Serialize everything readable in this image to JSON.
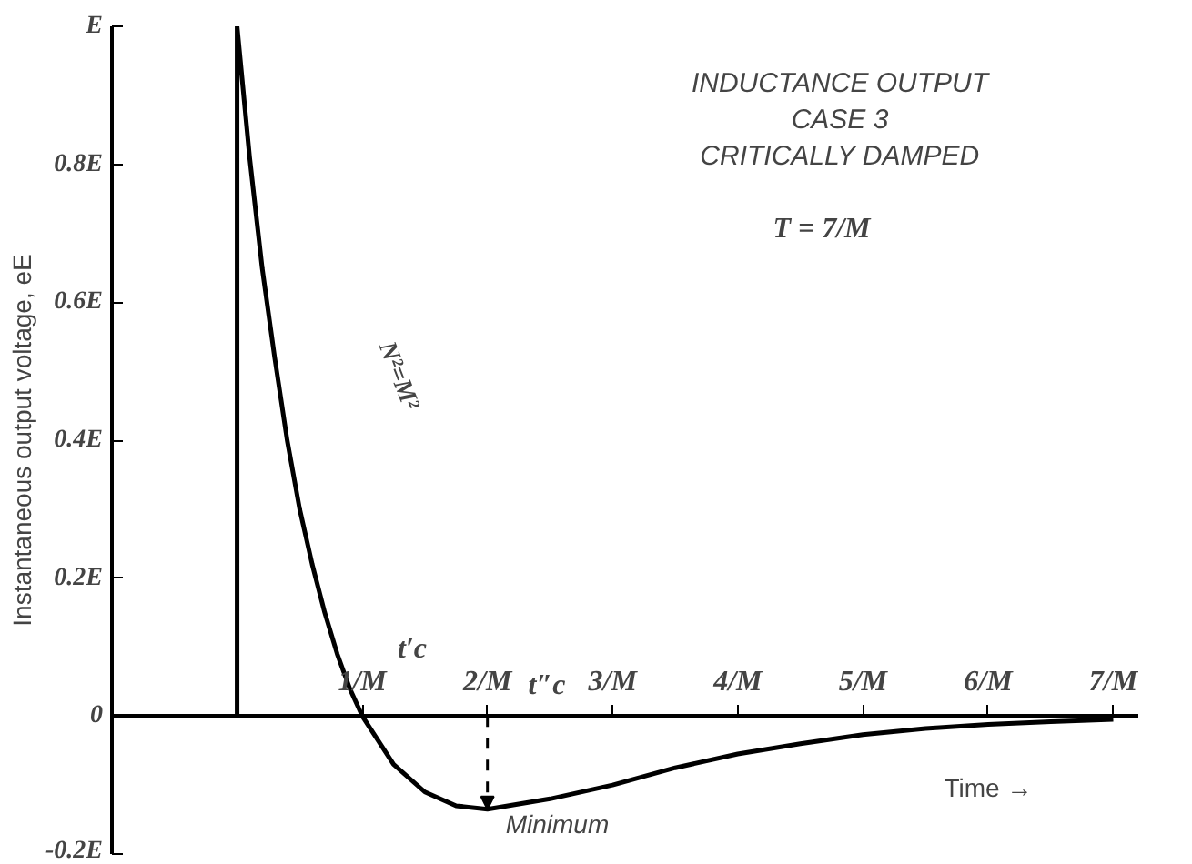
{
  "chart_data": {
    "type": "line",
    "title": "INDUCTANCE OUTPUT",
    "subtitle": "CASE 3\nCRITICALLY DAMPED",
    "xlabel": "Time →",
    "ylabel": "Instantaneous output voltage, eE",
    "x": [
      0,
      0,
      0.1,
      0.2,
      0.3,
      0.4,
      0.5,
      0.6,
      0.7,
      0.8,
      0.9,
      1,
      1.25,
      1.5,
      1.75,
      2,
      2.5,
      3,
      3.5,
      4,
      4.5,
      5,
      5.5,
      6,
      6.5,
      7
    ],
    "series": [
      {
        "color": "#000000",
        "values": [
          0,
          1,
          0.81,
          0.65,
          0.52,
          0.4,
          0.3,
          0.22,
          0.15,
          0.09,
          0.04,
          0,
          -0.07,
          -0.11,
          -0.13,
          -0.135,
          -0.12,
          -0.1,
          -0.075,
          -0.055,
          -0.04,
          -0.027,
          -0.018,
          -0.012,
          -0.008,
          -0.005
        ]
      }
    ],
    "xlim": [
      -1,
      7.2
    ],
    "ylim": [
      -0.2,
      1
    ],
    "xticks": [
      {
        "value": 1,
        "label": "1/M"
      },
      {
        "value": 2,
        "label": "2/M"
      },
      {
        "value": 3,
        "label": "3/M"
      },
      {
        "value": 4,
        "label": "4/M"
      },
      {
        "value": 5,
        "label": "5/M"
      },
      {
        "value": 6,
        "label": "6/M"
      },
      {
        "value": 7,
        "label": "7/M"
      }
    ],
    "yticks": [
      {
        "value": -0.2,
        "label": "-0.2E"
      },
      {
        "value": 0,
        "label": "0"
      },
      {
        "value": 0.2,
        "label": "0.2E"
      },
      {
        "value": 0.4,
        "label": "0.4E"
      },
      {
        "value": 0.6,
        "label": "0.6E"
      },
      {
        "value": 0.8,
        "label": "0.8E"
      },
      {
        "value": 1,
        "label": "E"
      }
    ],
    "annotations": [
      "T = 7/M",
      "N²=M²",
      "t′c",
      "t″c",
      {
        "text": "Minimum",
        "x": 2,
        "y": -0.135
      }
    ],
    "grid": false,
    "marker": "none",
    "line_style": "solid"
  }
}
